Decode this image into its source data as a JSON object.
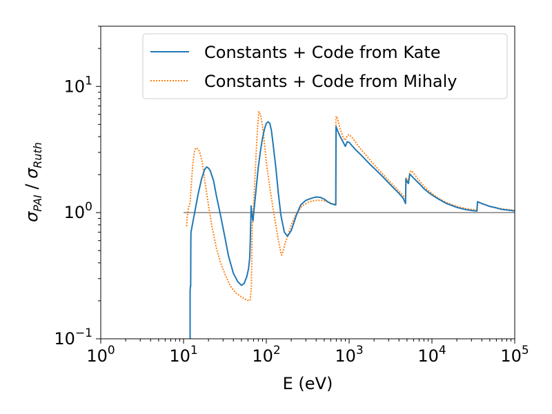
{
  "chart_data": {
    "type": "line",
    "xlabel": "E (eV)",
    "ylabel_main": "σ",
    "ylabel_sub1": "PAI",
    "ylabel_sep": " / ",
    "ylabel_sub2": "Ruth",
    "x_scale": "log",
    "y_scale": "log",
    "xlim": [
      1,
      100000
    ],
    "ylim": [
      0.1,
      30
    ],
    "x_ticks": [
      {
        "value": 1,
        "base": "10",
        "exp": "0"
      },
      {
        "value": 10,
        "base": "10",
        "exp": "1"
      },
      {
        "value": 100,
        "base": "10",
        "exp": "2"
      },
      {
        "value": 1000,
        "base": "10",
        "exp": "3"
      },
      {
        "value": 10000,
        "base": "10",
        "exp": "4"
      },
      {
        "value": 100000,
        "base": "10",
        "exp": "5"
      }
    ],
    "y_ticks": [
      {
        "value": 0.1,
        "base": "10",
        "exp": "−1"
      },
      {
        "value": 1,
        "base": "10",
        "exp": "0"
      },
      {
        "value": 10,
        "base": "10",
        "exp": "1"
      }
    ],
    "grid": false,
    "legend_position": "top-right",
    "reference_line": {
      "y": 1,
      "x_range": [
        10,
        100000
      ],
      "color": "#808080"
    },
    "series": [
      {
        "name": "Constants + Code from Kate",
        "color": "#1f77b4",
        "style": "solid",
        "points": [
          [
            12.0,
            0.1
          ],
          [
            12.0,
            0.24
          ],
          [
            12.1,
            0.26
          ],
          [
            12.2,
            0.26
          ],
          [
            12.25,
            0.6
          ],
          [
            12.3,
            0.7
          ],
          [
            13,
            0.85
          ],
          [
            14,
            1.1
          ],
          [
            15,
            1.4
          ],
          [
            16.5,
            1.85
          ],
          [
            18,
            2.2
          ],
          [
            19,
            2.3
          ],
          [
            20,
            2.25
          ],
          [
            21,
            2.15
          ],
          [
            23,
            1.8
          ],
          [
            25,
            1.35
          ],
          [
            28,
            0.95
          ],
          [
            31,
            0.68
          ],
          [
            35,
            0.45
          ],
          [
            40,
            0.33
          ],
          [
            45,
            0.285
          ],
          [
            50,
            0.265
          ],
          [
            54,
            0.275
          ],
          [
            58,
            0.31
          ],
          [
            61,
            0.36
          ],
          [
            63,
            0.44
          ],
          [
            64,
            0.6
          ],
          [
            65,
            0.9
          ],
          [
            65.5,
            1.13
          ],
          [
            66.5,
            1.0
          ],
          [
            68,
            0.9
          ],
          [
            69,
            0.86
          ],
          [
            70,
            0.95
          ],
          [
            72,
            1.15
          ],
          [
            75,
            1.5
          ],
          [
            80,
            2.3
          ],
          [
            85,
            3.1
          ],
          [
            90,
            3.9
          ],
          [
            95,
            4.6
          ],
          [
            100,
            5.1
          ],
          [
            105,
            5.25
          ],
          [
            110,
            5.1
          ],
          [
            115,
            4.5
          ],
          [
            120,
            3.6
          ],
          [
            130,
            2.3
          ],
          [
            140,
            1.4
          ],
          [
            150,
            0.95
          ],
          [
            165,
            0.7
          ],
          [
            180,
            0.65
          ],
          [
            200,
            0.72
          ],
          [
            230,
            0.95
          ],
          [
            260,
            1.15
          ],
          [
            300,
            1.25
          ],
          [
            350,
            1.3
          ],
          [
            400,
            1.33
          ],
          [
            450,
            1.32
          ],
          [
            500,
            1.28
          ],
          [
            550,
            1.22
          ],
          [
            600,
            1.18
          ],
          [
            650,
            1.16
          ],
          [
            690,
            1.15
          ],
          [
            695,
            4.8
          ],
          [
            720,
            4.5
          ],
          [
            780,
            4.0
          ],
          [
            850,
            3.6
          ],
          [
            900,
            3.35
          ],
          [
            950,
            3.65
          ],
          [
            1000,
            3.6
          ],
          [
            1100,
            3.35
          ],
          [
            1200,
            3.15
          ],
          [
            1400,
            2.85
          ],
          [
            1600,
            2.6
          ],
          [
            1800,
            2.4
          ],
          [
            2000,
            2.25
          ],
          [
            2500,
            1.95
          ],
          [
            3000,
            1.72
          ],
          [
            3500,
            1.55
          ],
          [
            4000,
            1.42
          ],
          [
            4500,
            1.3
          ],
          [
            4800,
            1.18
          ],
          [
            4850,
            1.85
          ],
          [
            5000,
            1.75
          ],
          [
            5200,
            1.7
          ],
          [
            5400,
            2.02
          ],
          [
            6000,
            1.88
          ],
          [
            7000,
            1.7
          ],
          [
            8000,
            1.55
          ],
          [
            9000,
            1.45
          ],
          [
            10000,
            1.38
          ],
          [
            12000,
            1.28
          ],
          [
            15000,
            1.18
          ],
          [
            20000,
            1.1
          ],
          [
            25000,
            1.06
          ],
          [
            30000,
            1.04
          ],
          [
            34000,
            1.03
          ],
          [
            35000,
            1.03
          ],
          [
            35500,
            1.22
          ],
          [
            40000,
            1.18
          ],
          [
            50000,
            1.12
          ],
          [
            60000,
            1.09
          ],
          [
            70000,
            1.06
          ],
          [
            80000,
            1.05
          ],
          [
            90000,
            1.04
          ],
          [
            100000,
            1.03
          ]
        ]
      },
      {
        "name": "Constants + Code from Mihaly",
        "color": "#ff7f0e",
        "style": "dotted",
        "points": [
          [
            10.9,
            0.78
          ],
          [
            11.0,
            0.9
          ],
          [
            11.5,
            1.1
          ],
          [
            12,
            1.2
          ],
          [
            12.5,
            1.8
          ],
          [
            13,
            2.5
          ],
          [
            13.5,
            3.0
          ],
          [
            14,
            3.25
          ],
          [
            15,
            3.2
          ],
          [
            16,
            2.9
          ],
          [
            17,
            2.4
          ],
          [
            18,
            1.8
          ],
          [
            20,
            1.15
          ],
          [
            22,
            0.78
          ],
          [
            25,
            0.52
          ],
          [
            28,
            0.4
          ],
          [
            32,
            0.32
          ],
          [
            37,
            0.26
          ],
          [
            43,
            0.23
          ],
          [
            50,
            0.215
          ],
          [
            56,
            0.205
          ],
          [
            62,
            0.2
          ],
          [
            64,
            0.205
          ],
          [
            66,
            0.26
          ],
          [
            67,
            0.6
          ],
          [
            68,
            0.85
          ],
          [
            70,
            1.1
          ],
          [
            72,
            1.6
          ],
          [
            75,
            2.8
          ],
          [
            78,
            4.5
          ],
          [
            81,
            6.3
          ],
          [
            85,
            6.0
          ],
          [
            90,
            4.8
          ],
          [
            95,
            3.5
          ],
          [
            100,
            2.5
          ],
          [
            110,
            1.6
          ],
          [
            120,
            1.1
          ],
          [
            130,
            0.8
          ],
          [
            140,
            0.6
          ],
          [
            150,
            0.48
          ],
          [
            153,
            0.46
          ],
          [
            160,
            0.5
          ],
          [
            170,
            0.58
          ],
          [
            185,
            0.68
          ],
          [
            200,
            0.8
          ],
          [
            230,
            0.98
          ],
          [
            270,
            1.13
          ],
          [
            330,
            1.22
          ],
          [
            400,
            1.25
          ],
          [
            480,
            1.25
          ],
          [
            550,
            1.22
          ],
          [
            620,
            1.18
          ],
          [
            690,
            1.16
          ],
          [
            692,
            5.5
          ],
          [
            700,
            5.8
          ],
          [
            720,
            5.6
          ],
          [
            780,
            4.6
          ],
          [
            850,
            3.9
          ],
          [
            900,
            3.75
          ],
          [
            950,
            4.1
          ],
          [
            1000,
            4.15
          ],
          [
            1100,
            3.9
          ],
          [
            1200,
            3.6
          ],
          [
            1400,
            3.15
          ],
          [
            1600,
            2.85
          ],
          [
            1800,
            2.6
          ],
          [
            2000,
            2.4
          ],
          [
            2500,
            2.05
          ],
          [
            3000,
            1.8
          ],
          [
            3500,
            1.62
          ],
          [
            4000,
            1.48
          ],
          [
            4500,
            1.36
          ],
          [
            4800,
            1.3
          ],
          [
            4850,
            1.9
          ],
          [
            5000,
            1.82
          ],
          [
            5200,
            1.78
          ],
          [
            5400,
            2.1
          ],
          [
            5700,
            2.15
          ],
          [
            6000,
            2.05
          ],
          [
            7000,
            1.8
          ],
          [
            8000,
            1.62
          ],
          [
            9000,
            1.5
          ],
          [
            10000,
            1.42
          ],
          [
            12000,
            1.3
          ],
          [
            15000,
            1.2
          ],
          [
            20000,
            1.12
          ],
          [
            25000,
            1.08
          ],
          [
            30000,
            1.06
          ],
          [
            34000,
            1.05
          ],
          [
            35000,
            1.05
          ],
          [
            35500,
            1.22
          ],
          [
            40000,
            1.18
          ],
          [
            50000,
            1.12
          ],
          [
            60000,
            1.09
          ],
          [
            70000,
            1.07
          ],
          [
            80000,
            1.06
          ],
          [
            90000,
            1.05
          ],
          [
            100000,
            1.04
          ]
        ]
      }
    ]
  }
}
